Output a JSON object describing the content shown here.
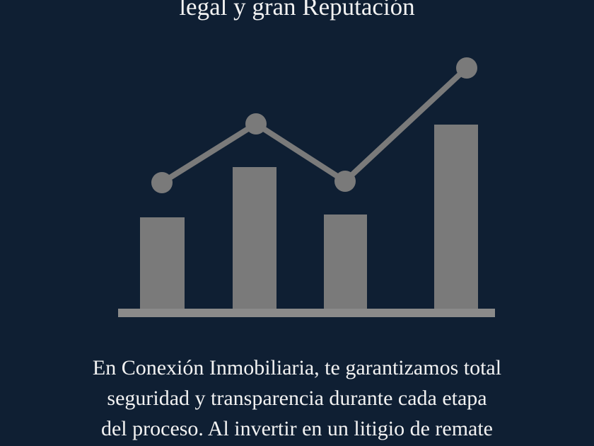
{
  "heading": "legal y gran Reputación",
  "paragraph_lines": [
    "En Conexión Inmobiliaria, te garantizamos total",
    "seguridad y transparencia durante cada etapa",
    "del proceso. Al invertir en un litigio de remate"
  ],
  "icon": "bar-chart-with-trend-line-icon",
  "colors": {
    "background": "#0f1f33",
    "graphic": "#7a7a7a",
    "text": "#f2f2f2"
  }
}
